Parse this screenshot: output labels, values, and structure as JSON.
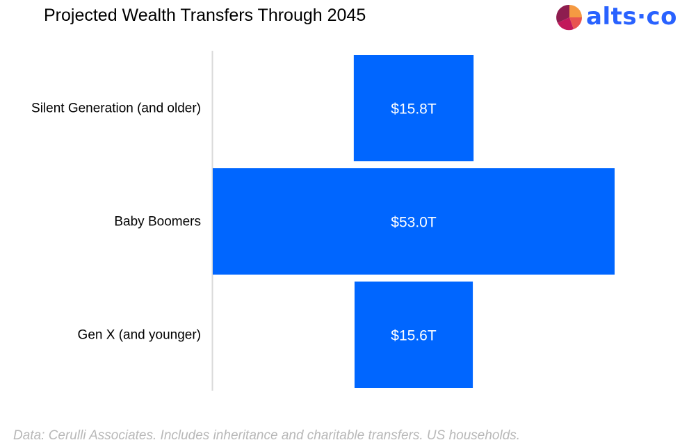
{
  "header": {
    "title": "Projected Wealth Transfers Through 2045",
    "brand": {
      "name": "alts",
      "suffix": "co",
      "separator": "·",
      "color": "#2962ff"
    }
  },
  "chart_data": {
    "type": "bar",
    "orientation": "horizontal",
    "layout": "centered-funnel",
    "title": "Projected Wealth Transfers Through 2045",
    "categories": [
      "Silent Generation (and older)",
      "Baby Boomers",
      "Gen X (and younger)"
    ],
    "values": [
      15.8,
      53.0,
      15.6
    ],
    "value_unit": "T",
    "data_labels": [
      "$15.8T",
      "$53.0T",
      "$15.6T"
    ],
    "bar_color": "#0066ff",
    "label_color": "#ffffff",
    "grid": false,
    "legend": "none"
  },
  "footer": {
    "source": "Data: Cerulli Associates. Includes inheritance and charitable transfers. US households."
  }
}
